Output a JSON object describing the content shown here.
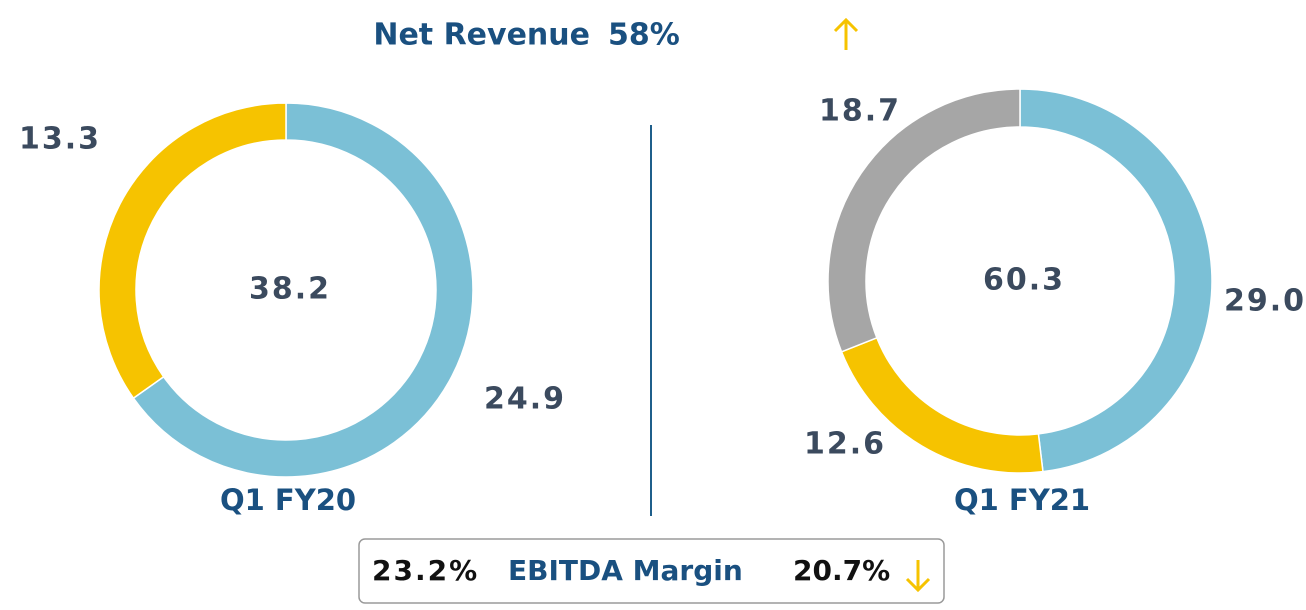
{
  "header": {
    "title": "Net Revenue",
    "change": "58%"
  },
  "chart_data": [
    {
      "type": "donut",
      "title": "Q1 FY20",
      "total": 38.2,
      "values": [
        24.9,
        13.3
      ],
      "colors": [
        "#7bc0d6",
        "#f6c300"
      ]
    },
    {
      "type": "donut",
      "title": "Q1 FY21",
      "total": 60.3,
      "values": [
        29.0,
        12.6,
        18.7
      ],
      "value_labels": [
        "29.0",
        "12.6",
        "18.7"
      ],
      "colors": [
        "#7bc0d6",
        "#f6c300",
        "#a6a6a6"
      ]
    }
  ],
  "footer": {
    "left": "23.2%",
    "label": "EBITDA Margin",
    "right": "20.7%"
  }
}
